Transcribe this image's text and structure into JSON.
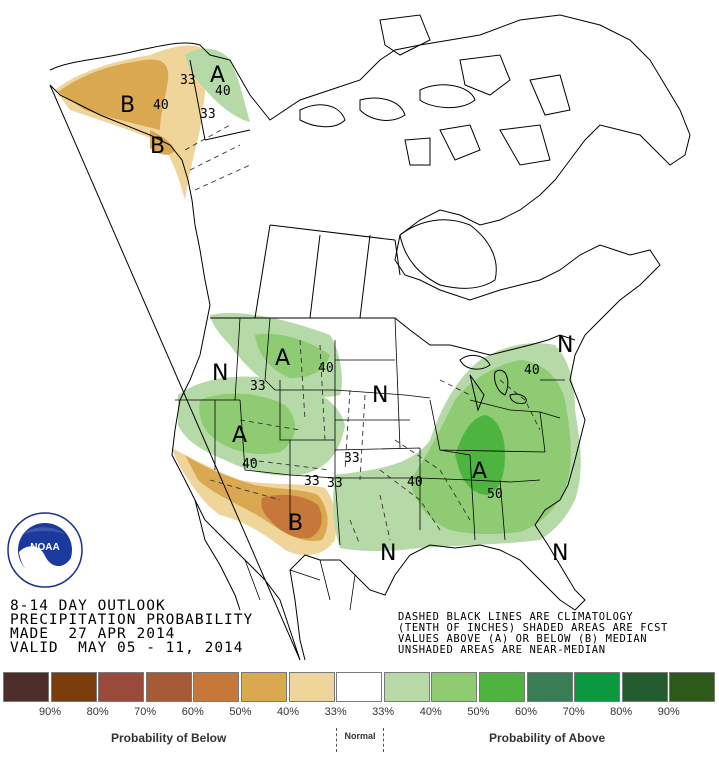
{
  "outlook": {
    "line1": "8-14 DAY OUTLOOK",
    "line2": "PRECIPITATION PROBABILITY",
    "line3": "MADE  27 APR 2014",
    "line4": "VALID  MAY 05 - 11, 2014"
  },
  "notes": {
    "line1": "DASHED BLACK LINES ARE CLIMATOLOGY",
    "line2": "(TENTH OF INCHES) SHADED AREAS ARE FCST",
    "line3": "VALUES ABOVE (A) OR BELOW (B) MEDIAN",
    "line4": "UNSHADED AREAS ARE NEAR-MEDIAN"
  },
  "logo": {
    "text": "NOAA",
    "ring_text": "NATIONAL OCEANIC AND ATMOSPHERIC ADMINISTRATION · U.S. DEPARTMENT OF COMMERCE"
  },
  "map_labels": {
    "alaska_b1": "B",
    "alaska_40": "40",
    "alaska_33a": "33",
    "alaska_33b": "33",
    "alaska_b2": "B",
    "yukon_a": "A",
    "yukon_40": "40",
    "nw_a": "A",
    "nw_40": "40",
    "west_n": "N",
    "west_33": "33",
    "rockies_a": "A",
    "rockies_40": "40",
    "sw_33a": "33",
    "sw_33b": "33",
    "sw_b": "B",
    "plains_n": "N",
    "plains_33": "33",
    "east_a": "A",
    "east_50": "50",
    "east_40a": "40",
    "east_40b": "40",
    "ne_n": "N",
    "texas_n": "N",
    "se_n": "N"
  },
  "legend": {
    "below_caption": "Probability of Below",
    "normal_caption": "Normal",
    "above_caption": "Probability of Above",
    "swatches": [
      {
        "label": "90%",
        "color": "#4d2d2b"
      },
      {
        "label": "80%",
        "color": "#7b3d0e"
      },
      {
        "label": "70%",
        "color": "#9a4a3a"
      },
      {
        "label": "60%",
        "color": "#a65a35"
      },
      {
        "label": "50%",
        "color": "#c6773a"
      },
      {
        "label": "40%",
        "color": "#d9a850"
      },
      {
        "label": "33%",
        "color": "#efd59a"
      },
      {
        "label": "33%",
        "color": "#ffffff"
      },
      {
        "label": "40%",
        "color": "#b5daa8"
      },
      {
        "label": "50%",
        "color": "#8ecb72"
      },
      {
        "label": "60%",
        "color": "#4db53f"
      },
      {
        "label": "70%",
        "color": "#3a7e58"
      },
      {
        "label": "80%",
        "color": "#0b993f"
      },
      {
        "label": "90%",
        "color": "#255c2e"
      },
      {
        "label": "",
        "color": "#2d5a1a"
      }
    ]
  },
  "colors": {
    "below_33": "#efd59a",
    "below_40": "#d9a850",
    "below_50": "#c6773a",
    "above_33": "#b5daa8",
    "above_40": "#8ecb72",
    "above_50": "#4db53f"
  }
}
